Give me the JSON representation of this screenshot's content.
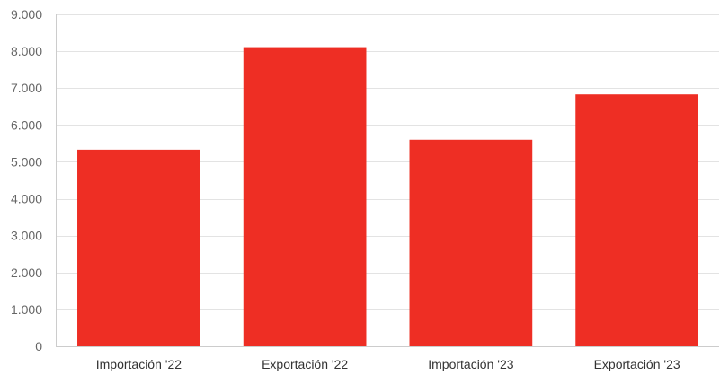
{
  "chart_data": {
    "type": "bar",
    "categories": [
      "Importación '22",
      "Exportación '22",
      "Importación '23",
      "Exportación '23"
    ],
    "values": [
      5330,
      8110,
      5600,
      6830
    ],
    "ylim": [
      0,
      9000
    ],
    "yticks": [
      0,
      1000,
      2000,
      3000,
      4000,
      5000,
      6000,
      7000,
      8000,
      9000
    ],
    "ytick_labels": [
      "0",
      "1.000",
      "2.000",
      "3.000",
      "4.000",
      "5.000",
      "6.000",
      "7.000",
      "8.000",
      "9.000"
    ],
    "grid": true,
    "legend": "none",
    "colors": {
      "bar": "#ee2e24",
      "grid": "#e3e3e3",
      "axis": "#cccccc"
    }
  }
}
